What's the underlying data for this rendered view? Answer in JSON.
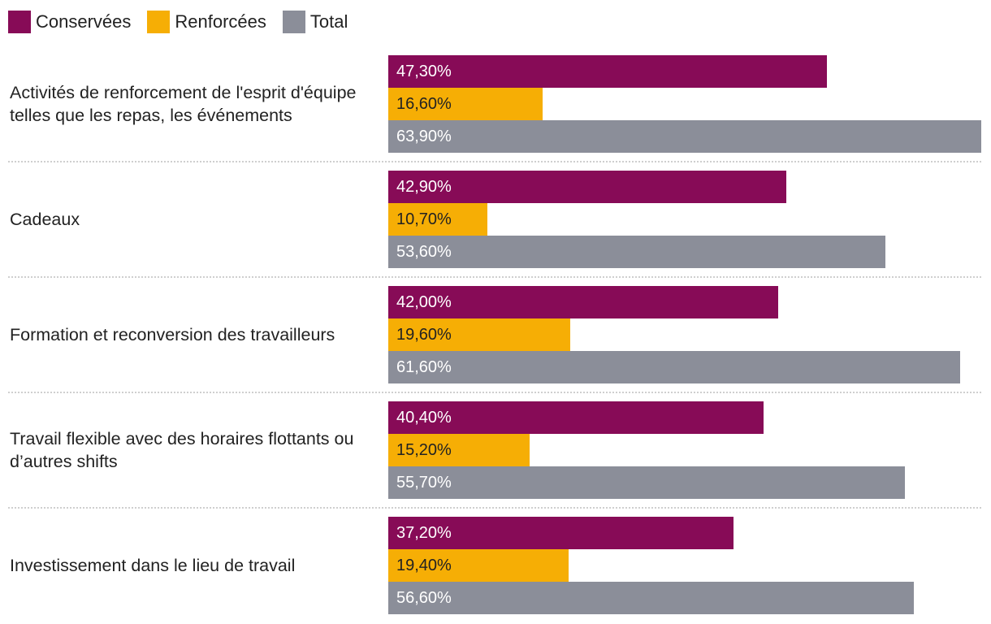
{
  "chart_data": {
    "type": "bar",
    "orientation": "horizontal",
    "title": "",
    "xlabel": "",
    "ylabel": "",
    "xlim": [
      0,
      63.9
    ],
    "legend_position": "top-left",
    "grid": false,
    "categories": [
      "Activités de renforcement de l'esprit d'équipe telles que les repas, les événements",
      "Cadeaux",
      "Formation et reconversion des travailleurs",
      "Travail flexible avec des horaires flottants ou d’autres shifts",
      "Investissement dans le lieu de travail"
    ],
    "series": [
      {
        "name": "Conservées",
        "color": "#870b57",
        "label_color": "#ffffff",
        "values": [
          47.3,
          42.9,
          42.0,
          40.4,
          37.2
        ],
        "labels": [
          "47,30%",
          "42,90%",
          "42,00%",
          "40,40%",
          "37,20%"
        ]
      },
      {
        "name": "Renforcées",
        "color": "#f6ae05",
        "label_color": "#222222",
        "values": [
          16.6,
          10.7,
          19.6,
          15.2,
          19.4
        ],
        "labels": [
          "16,60%",
          "10,70%",
          "19,60%",
          "15,20%",
          "19,40%"
        ]
      },
      {
        "name": "Total",
        "color": "#8b8e99",
        "label_color": "#ffffff",
        "values": [
          63.9,
          53.6,
          61.6,
          55.7,
          56.6
        ],
        "labels": [
          "63,90%",
          "53,60%",
          "61,60%",
          "55,70%",
          "56,60%"
        ]
      }
    ]
  }
}
